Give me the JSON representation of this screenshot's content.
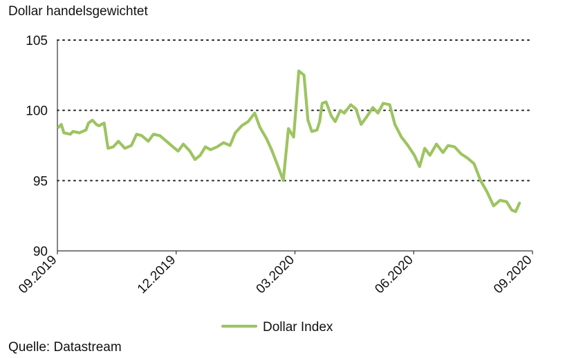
{
  "chart_data": {
    "type": "line",
    "title": "Dollar handelsgewichtet",
    "xlabel": "",
    "ylabel": "",
    "ylim": [
      90,
      105
    ],
    "y_ticks": [
      "90",
      "95",
      "100",
      "105"
    ],
    "x_ticks": [
      "09.2019",
      "12.2019",
      "03.2020",
      "06.2020",
      "09.2020"
    ],
    "grid": "horizontal dotted",
    "legend": "bottom",
    "series": [
      {
        "name": "Dollar Index",
        "color": "#9DC461",
        "x": [
          "2019-09-02",
          "2019-09-04",
          "2019-09-06",
          "2019-09-11",
          "2019-09-13",
          "2019-09-18",
          "2019-09-23",
          "2019-09-25",
          "2019-09-28",
          "2019-10-01",
          "2019-10-03",
          "2019-10-07",
          "2019-10-10",
          "2019-10-14",
          "2019-10-18",
          "2019-10-23",
          "2019-10-28",
          "2019-11-01",
          "2019-11-05",
          "2019-11-10",
          "2019-11-14",
          "2019-11-19",
          "2019-11-24",
          "2019-11-29",
          "2019-12-03",
          "2019-12-07",
          "2019-12-12",
          "2019-12-16",
          "2019-12-20",
          "2019-12-24",
          "2019-12-28",
          "2020-01-02",
          "2020-01-07",
          "2020-01-12",
          "2020-01-16",
          "2020-01-21",
          "2020-01-26",
          "2020-01-31",
          "2020-02-04",
          "2020-02-09",
          "2020-02-13",
          "2020-02-18",
          "2020-02-22",
          "2020-02-26",
          "2020-03-01",
          "2020-03-05",
          "2020-03-09",
          "2020-03-12",
          "2020-03-15",
          "2020-03-19",
          "2020-03-21",
          "2020-03-23",
          "2020-03-26",
          "2020-03-30",
          "2020-04-02",
          "2020-04-06",
          "2020-04-09",
          "2020-04-14",
          "2020-04-18",
          "2020-04-22",
          "2020-04-26",
          "2020-05-01",
          "2020-05-05",
          "2020-05-09",
          "2020-05-14",
          "2020-05-18",
          "2020-05-23",
          "2020-05-28",
          "2020-06-02",
          "2020-06-06",
          "2020-06-10",
          "2020-06-14",
          "2020-06-19",
          "2020-06-24",
          "2020-06-28",
          "2020-07-03",
          "2020-07-08",
          "2020-07-13",
          "2020-07-18",
          "2020-07-23",
          "2020-07-28",
          "2020-08-02",
          "2020-08-07",
          "2020-08-12",
          "2020-08-16",
          "2020-08-19",
          "2020-08-22"
        ],
        "values": [
          98.8,
          99.0,
          98.4,
          98.3,
          98.5,
          98.4,
          98.6,
          99.1,
          99.3,
          99.0,
          98.9,
          99.1,
          97.3,
          97.4,
          97.8,
          97.3,
          97.5,
          98.3,
          98.2,
          97.8,
          98.3,
          98.2,
          97.8,
          97.4,
          97.1,
          97.6,
          97.1,
          96.5,
          96.8,
          97.4,
          97.2,
          97.4,
          97.7,
          97.5,
          98.4,
          98.9,
          99.2,
          99.8,
          98.8,
          98.0,
          97.2,
          96.0,
          95.0,
          98.7,
          98.1,
          102.8,
          102.5,
          99.3,
          98.5,
          98.6,
          99.2,
          100.5,
          100.6,
          99.6,
          99.2,
          100.0,
          99.8,
          100.4,
          100.1,
          99.0,
          99.5,
          100.2,
          99.8,
          100.5,
          100.4,
          99.0,
          98.1,
          97.5,
          96.8,
          96.0,
          97.3,
          96.8,
          97.6,
          97.0,
          97.5,
          97.4,
          96.9,
          96.6,
          96.2,
          95.0,
          94.2,
          93.2,
          93.6,
          93.5,
          92.9,
          92.8,
          93.4
        ]
      }
    ]
  }
}
